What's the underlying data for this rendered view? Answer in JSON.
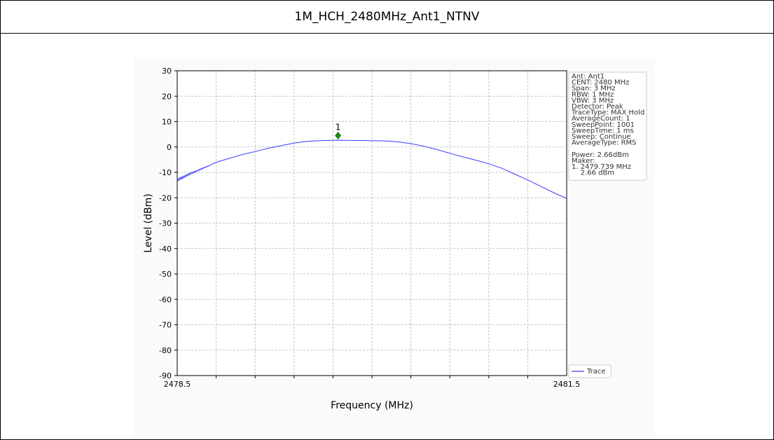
{
  "page_title": "1M_HCH_2480MHz_Ant1_NTNV",
  "chart_data": {
    "type": "line",
    "xlabel": "Frequency (MHz)",
    "ylabel": "Level (dBm)",
    "xlim": [
      2478.5,
      2481.5
    ],
    "ylim": [
      -90,
      30
    ],
    "x_tick_labels": [
      "2478.5",
      "2481.5"
    ],
    "y_ticks": [
      30,
      20,
      10,
      0,
      -10,
      -20,
      -30,
      -40,
      -50,
      -60,
      -70,
      -80,
      -90
    ],
    "grid": true,
    "series": [
      {
        "name": "Trace",
        "color": "#3b3bff",
        "x": [
          2478.5,
          2478.55,
          2478.6,
          2478.65,
          2478.7,
          2478.75,
          2478.8,
          2478.9,
          2479.0,
          2479.1,
          2479.2,
          2479.3,
          2479.4,
          2479.5,
          2479.6,
          2479.7,
          2479.739,
          2479.8,
          2479.9,
          2480.0,
          2480.1,
          2480.2,
          2480.3,
          2480.4,
          2480.5,
          2480.6,
          2480.7,
          2480.8,
          2480.9,
          2481.0,
          2481.1,
          2481.2,
          2481.3,
          2481.4,
          2481.5
        ],
        "y": [
          -13.0,
          -11.8,
          -10.5,
          -9.5,
          -8.3,
          -7.3,
          -6.0,
          -4.5,
          -3.0,
          -1.8,
          -0.5,
          0.5,
          1.5,
          2.2,
          2.5,
          2.6,
          2.66,
          2.6,
          2.55,
          2.5,
          2.4,
          2.0,
          1.3,
          0.3,
          -1.0,
          -2.5,
          -3.9,
          -5.2,
          -6.6,
          -8.4,
          -10.7,
          -13.0,
          -15.5,
          -18.0,
          -20.3
        ]
      }
    ],
    "marker": {
      "label": "1",
      "x": 2479.739,
      "y": 4.5,
      "color": "#1a8c1a"
    },
    "legend": {
      "position": "bottom-right",
      "entries": [
        "Trace"
      ]
    },
    "info_box": {
      "position": "top-right",
      "lines": [
        "Ant: Ant1",
        "CENT: 2480 MHz",
        "Span: 3 MHz",
        "RBW: 1 MHz",
        "VBW: 3 MHz",
        "Detector: Peak",
        "TraceType: MAX Hold",
        "AverageCount: 1",
        "SweepPoint: 1001",
        "SweepTime: 1 ms",
        "Sweep: Continue",
        "AverageType: RMS",
        "",
        "Power: 2.66dBm",
        "Maker:",
        "1. 2479.739 MHz",
        "    2.66 dBm"
      ]
    }
  }
}
